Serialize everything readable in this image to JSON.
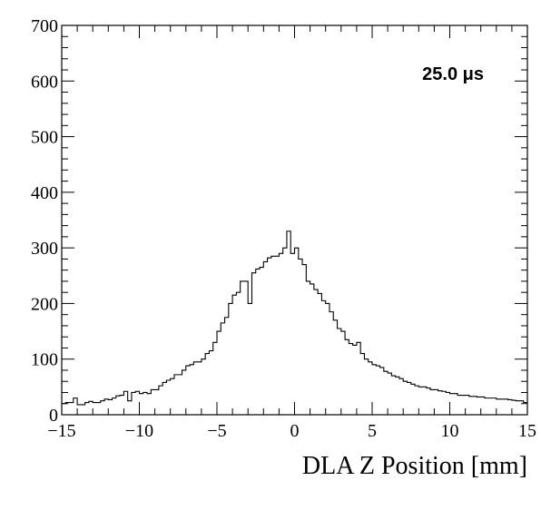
{
  "chart_data": {
    "type": "histogram",
    "title": "",
    "xlabel": "DLA Z Position [mm]",
    "ylabel": "",
    "annotation": "25.0 μs",
    "xlim": [
      -15,
      15
    ],
    "ylim": [
      0,
      700
    ],
    "x_ticks": [
      -15,
      -10,
      -5,
      0,
      5,
      10,
      15
    ],
    "x_tick_labels": [
      "−15",
      "−10",
      "−5",
      "0",
      "5",
      "10",
      "15"
    ],
    "y_ticks": [
      0,
      100,
      200,
      300,
      400,
      500,
      600,
      700
    ],
    "y_tick_labels": [
      "0",
      "100",
      "200",
      "300",
      "400",
      "500",
      "600",
      "700"
    ],
    "bin_width": 0.25,
    "bin_start": -15,
    "values": [
      20,
      22,
      22,
      30,
      18,
      18,
      22,
      24,
      22,
      22,
      25,
      28,
      27,
      30,
      34,
      35,
      42,
      25,
      40,
      42,
      38,
      40,
      38,
      45,
      45,
      52,
      58,
      62,
      65,
      72,
      72,
      80,
      88,
      90,
      95,
      95,
      100,
      110,
      115,
      130,
      150,
      165,
      175,
      200,
      215,
      220,
      240,
      240,
      200,
      255,
      262,
      265,
      275,
      282,
      285,
      285,
      290,
      300,
      330,
      290,
      300,
      280,
      270,
      240,
      235,
      225,
      218,
      205,
      200,
      185,
      170,
      155,
      150,
      135,
      128,
      125,
      130,
      110,
      100,
      95,
      90,
      88,
      85,
      78,
      75,
      70,
      68,
      65,
      60,
      58,
      55,
      52,
      50,
      50,
      48,
      45,
      45,
      43,
      42,
      40,
      38,
      38,
      35,
      35,
      35,
      33,
      33,
      32,
      32,
      30,
      30,
      30,
      28,
      28,
      28,
      27,
      26,
      25,
      25,
      22
    ]
  }
}
